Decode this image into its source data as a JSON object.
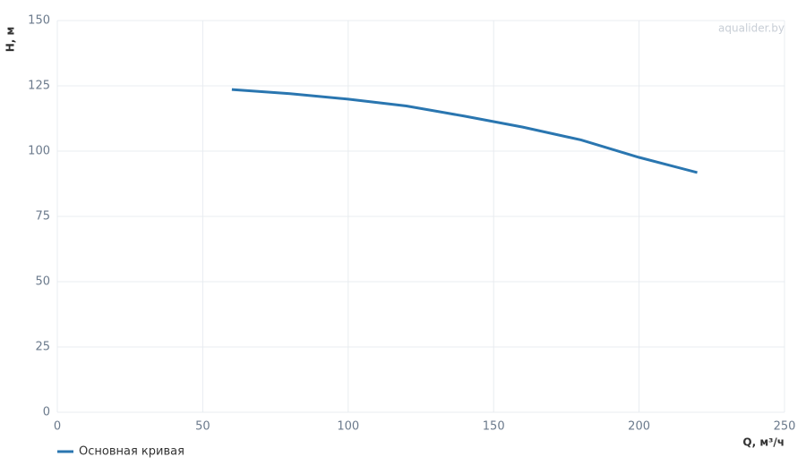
{
  "chart_data": {
    "type": "line",
    "x_label": "Q, м³/ч",
    "y_label": "H, м",
    "watermark": "aqualider.by",
    "x": [
      60,
      80,
      100,
      120,
      140,
      160,
      180,
      200,
      220
    ],
    "series": [
      {
        "name": "Основная кривая",
        "color": "#2a76b0",
        "values": [
          123.6,
          122.0,
          119.9,
          117.3,
          113.4,
          109.2,
          104.3,
          97.6,
          91.8
        ]
      }
    ],
    "xlim": [
      0,
      250
    ],
    "xticks": [
      0,
      50,
      100,
      150,
      200,
      250
    ],
    "ylim": [
      0,
      150
    ],
    "yticks": [
      0,
      25,
      50,
      75,
      100,
      125,
      150
    ],
    "grid": true,
    "legend": "bottom-left"
  }
}
